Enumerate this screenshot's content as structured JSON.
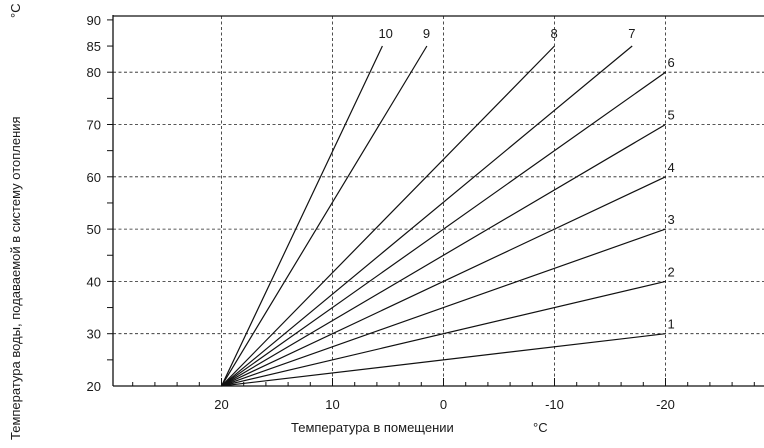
{
  "chart_data": {
    "type": "line",
    "xlabel": "Температура в помещении",
    "xunit": "°C",
    "ylabel": "Температура воды, подаваемой в систему отопления",
    "yunit": "°C",
    "xlim": [
      30,
      -30
    ],
    "ylim": [
      20,
      90
    ],
    "x_ticks": [
      20,
      10,
      0,
      -10,
      -20
    ],
    "x_tick_labels": [
      "20",
      "10",
      "0",
      "-10",
      "-20"
    ],
    "y_ticks": [
      20,
      30,
      40,
      50,
      60,
      70,
      80,
      85,
      90
    ],
    "y_tick_labels": [
      "20",
      "30",
      "40",
      "50",
      "60",
      "70",
      "80",
      "85",
      "90"
    ],
    "grid": true,
    "series": [
      {
        "name": "1",
        "x": [
          20,
          -20
        ],
        "y": [
          20,
          30
        ]
      },
      {
        "name": "2",
        "x": [
          20,
          -20
        ],
        "y": [
          20,
          40
        ]
      },
      {
        "name": "3",
        "x": [
          20,
          -20
        ],
        "y": [
          20,
          50
        ]
      },
      {
        "name": "4",
        "x": [
          20,
          -20
        ],
        "y": [
          20,
          60
        ]
      },
      {
        "name": "5",
        "x": [
          20,
          -20
        ],
        "y": [
          20,
          70
        ]
      },
      {
        "name": "6",
        "x": [
          20,
          -20
        ],
        "y": [
          20,
          80
        ]
      },
      {
        "name": "7",
        "x": [
          20,
          -17
        ],
        "y": [
          20,
          85
        ]
      },
      {
        "name": "8",
        "x": [
          20,
          -10
        ],
        "y": [
          20,
          85
        ]
      },
      {
        "name": "9",
        "x": [
          20,
          1.5
        ],
        "y": [
          20,
          85
        ]
      },
      {
        "name": "10",
        "x": [
          20,
          5.5
        ],
        "y": [
          20,
          85
        ]
      }
    ]
  }
}
